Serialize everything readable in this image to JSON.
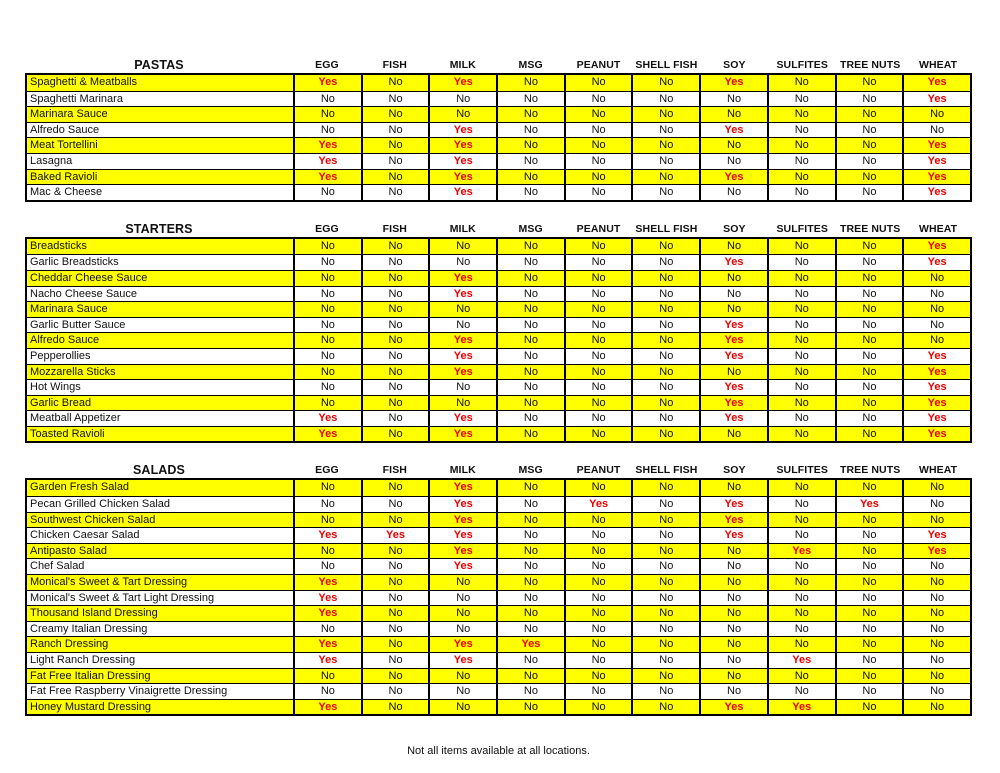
{
  "columns": [
    "EGG",
    "FISH",
    "MILK",
    "MSG",
    "PEANUT",
    "SHELL FISH",
    "SOY",
    "SULFITES",
    "TREE NUTS",
    "WHEAT"
  ],
  "colors": {
    "highlight_row": "#FFFF00",
    "yes_text": "#EE0000",
    "no_text": "#111111",
    "border": "#000000",
    "background": "#FFFFFF"
  },
  "footer": {
    "note": "Not all items available at all locations."
  },
  "sections": [
    {
      "title": "PASTAS",
      "rows": [
        {
          "item": "Spaghetti & Meatballs",
          "values": [
            "Yes",
            "No",
            "Yes",
            "No",
            "No",
            "No",
            "Yes",
            "No",
            "No",
            "Yes"
          ]
        },
        {
          "item": "Spaghetti Marinara",
          "values": [
            "No",
            "No",
            "No",
            "No",
            "No",
            "No",
            "No",
            "No",
            "No",
            "Yes"
          ]
        },
        {
          "item": "Marinara Sauce",
          "values": [
            "No",
            "No",
            "No",
            "No",
            "No",
            "No",
            "No",
            "No",
            "No",
            "No"
          ]
        },
        {
          "item": "Alfredo Sauce",
          "values": [
            "No",
            "No",
            "Yes",
            "No",
            "No",
            "No",
            "Yes",
            "No",
            "No",
            "No"
          ]
        },
        {
          "item": "Meat Tortellini",
          "values": [
            "Yes",
            "No",
            "Yes",
            "No",
            "No",
            "No",
            "No",
            "No",
            "No",
            "Yes"
          ]
        },
        {
          "item": "Lasagna",
          "values": [
            "Yes",
            "No",
            "Yes",
            "No",
            "No",
            "No",
            "No",
            "No",
            "No",
            "Yes"
          ]
        },
        {
          "item": "Baked Ravioli",
          "values": [
            "Yes",
            "No",
            "Yes",
            "No",
            "No",
            "No",
            "Yes",
            "No",
            "No",
            "Yes"
          ]
        },
        {
          "item": "Mac & Cheese",
          "values": [
            "No",
            "No",
            "Yes",
            "No",
            "No",
            "No",
            "No",
            "No",
            "No",
            "Yes"
          ]
        }
      ]
    },
    {
      "title": "STARTERS",
      "rows": [
        {
          "item": "Breadsticks",
          "values": [
            "No",
            "No",
            "No",
            "No",
            "No",
            "No",
            "No",
            "No",
            "No",
            "Yes"
          ]
        },
        {
          "item": "Garlic Breadsticks",
          "values": [
            "No",
            "No",
            "No",
            "No",
            "No",
            "No",
            "Yes",
            "No",
            "No",
            "Yes"
          ]
        },
        {
          "item": "Cheddar Cheese Sauce",
          "values": [
            "No",
            "No",
            "Yes",
            "No",
            "No",
            "No",
            "No",
            "No",
            "No",
            "No"
          ]
        },
        {
          "item": "Nacho Cheese Sauce",
          "values": [
            "No",
            "No",
            "Yes",
            "No",
            "No",
            "No",
            "No",
            "No",
            "No",
            "No"
          ]
        },
        {
          "item": "Marinara Sauce",
          "values": [
            "No",
            "No",
            "No",
            "No",
            "No",
            "No",
            "No",
            "No",
            "No",
            "No"
          ]
        },
        {
          "item": "Garlic Butter Sauce",
          "values": [
            "No",
            "No",
            "No",
            "No",
            "No",
            "No",
            "Yes",
            "No",
            "No",
            "No"
          ]
        },
        {
          "item": "Alfredo Sauce",
          "values": [
            "No",
            "No",
            "Yes",
            "No",
            "No",
            "No",
            "Yes",
            "No",
            "No",
            "No"
          ]
        },
        {
          "item": "Pepperollies",
          "values": [
            "No",
            "No",
            "Yes",
            "No",
            "No",
            "No",
            "Yes",
            "No",
            "No",
            "Yes"
          ]
        },
        {
          "item": "Mozzarella Sticks",
          "values": [
            "No",
            "No",
            "Yes",
            "No",
            "No",
            "No",
            "No",
            "No",
            "No",
            "Yes"
          ]
        },
        {
          "item": "Hot Wings",
          "values": [
            "No",
            "No",
            "No",
            "No",
            "No",
            "No",
            "Yes",
            "No",
            "No",
            "Yes"
          ]
        },
        {
          "item": "Garlic Bread",
          "values": [
            "No",
            "No",
            "No",
            "No",
            "No",
            "No",
            "Yes",
            "No",
            "No",
            "Yes"
          ]
        },
        {
          "item": "Meatball Appetizer",
          "values": [
            "Yes",
            "No",
            "Yes",
            "No",
            "No",
            "No",
            "Yes",
            "No",
            "No",
            "Yes"
          ]
        },
        {
          "item": "Toasted Ravioli",
          "values": [
            "Yes",
            "No",
            "Yes",
            "No",
            "No",
            "No",
            "No",
            "No",
            "No",
            "Yes"
          ]
        }
      ]
    },
    {
      "title": "SALADS",
      "rows": [
        {
          "item": "Garden Fresh Salad",
          "values": [
            "No",
            "No",
            "Yes",
            "No",
            "No",
            "No",
            "No",
            "No",
            "No",
            "No"
          ]
        },
        {
          "item": "Pecan Grilled Chicken Salad",
          "values": [
            "No",
            "No",
            "Yes",
            "No",
            "Yes",
            "No",
            "Yes",
            "No",
            "Yes",
            "No"
          ]
        },
        {
          "item": "Southwest Chicken Salad",
          "values": [
            "No",
            "No",
            "Yes",
            "No",
            "No",
            "No",
            "Yes",
            "No",
            "No",
            "No"
          ]
        },
        {
          "item": "Chicken Caesar Salad",
          "values": [
            "Yes",
            "Yes",
            "Yes",
            "No",
            "No",
            "No",
            "Yes",
            "No",
            "No",
            "Yes"
          ]
        },
        {
          "item": "Antipasto Salad",
          "values": [
            "No",
            "No",
            "Yes",
            "No",
            "No",
            "No",
            "No",
            "Yes",
            "No",
            "Yes"
          ]
        },
        {
          "item": "Chef Salad",
          "values": [
            "No",
            "No",
            "Yes",
            "No",
            "No",
            "No",
            "No",
            "No",
            "No",
            "No"
          ]
        },
        {
          "item": "Monical's Sweet & Tart Dressing",
          "values": [
            "Yes",
            "No",
            "No",
            "No",
            "No",
            "No",
            "No",
            "No",
            "No",
            "No"
          ]
        },
        {
          "item": "Monical's Sweet & Tart Light Dressing",
          "values": [
            "Yes",
            "No",
            "No",
            "No",
            "No",
            "No",
            "No",
            "No",
            "No",
            "No"
          ]
        },
        {
          "item": "Thousand Island Dressing",
          "values": [
            "Yes",
            "No",
            "No",
            "No",
            "No",
            "No",
            "No",
            "No",
            "No",
            "No"
          ]
        },
        {
          "item": "Creamy Italian Dressing",
          "values": [
            "No",
            "No",
            "No",
            "No",
            "No",
            "No",
            "No",
            "No",
            "No",
            "No"
          ]
        },
        {
          "item": "Ranch Dressing",
          "values": [
            "Yes",
            "No",
            "Yes",
            "Yes",
            "No",
            "No",
            "No",
            "No",
            "No",
            "No"
          ]
        },
        {
          "item": "Light Ranch Dressing",
          "values": [
            "Yes",
            "No",
            "Yes",
            "No",
            "No",
            "No",
            "No",
            "Yes",
            "No",
            "No"
          ]
        },
        {
          "item": "Fat Free Italian Dressing",
          "values": [
            "No",
            "No",
            "No",
            "No",
            "No",
            "No",
            "No",
            "No",
            "No",
            "No"
          ]
        },
        {
          "item": "Fat Free Raspberry Vinaigrette Dressing",
          "values": [
            "No",
            "No",
            "No",
            "No",
            "No",
            "No",
            "No",
            "No",
            "No",
            "No"
          ]
        },
        {
          "item": "Honey Mustard Dressing",
          "values": [
            "Yes",
            "No",
            "No",
            "No",
            "No",
            "No",
            "Yes",
            "Yes",
            "No",
            "No"
          ]
        }
      ]
    }
  ]
}
